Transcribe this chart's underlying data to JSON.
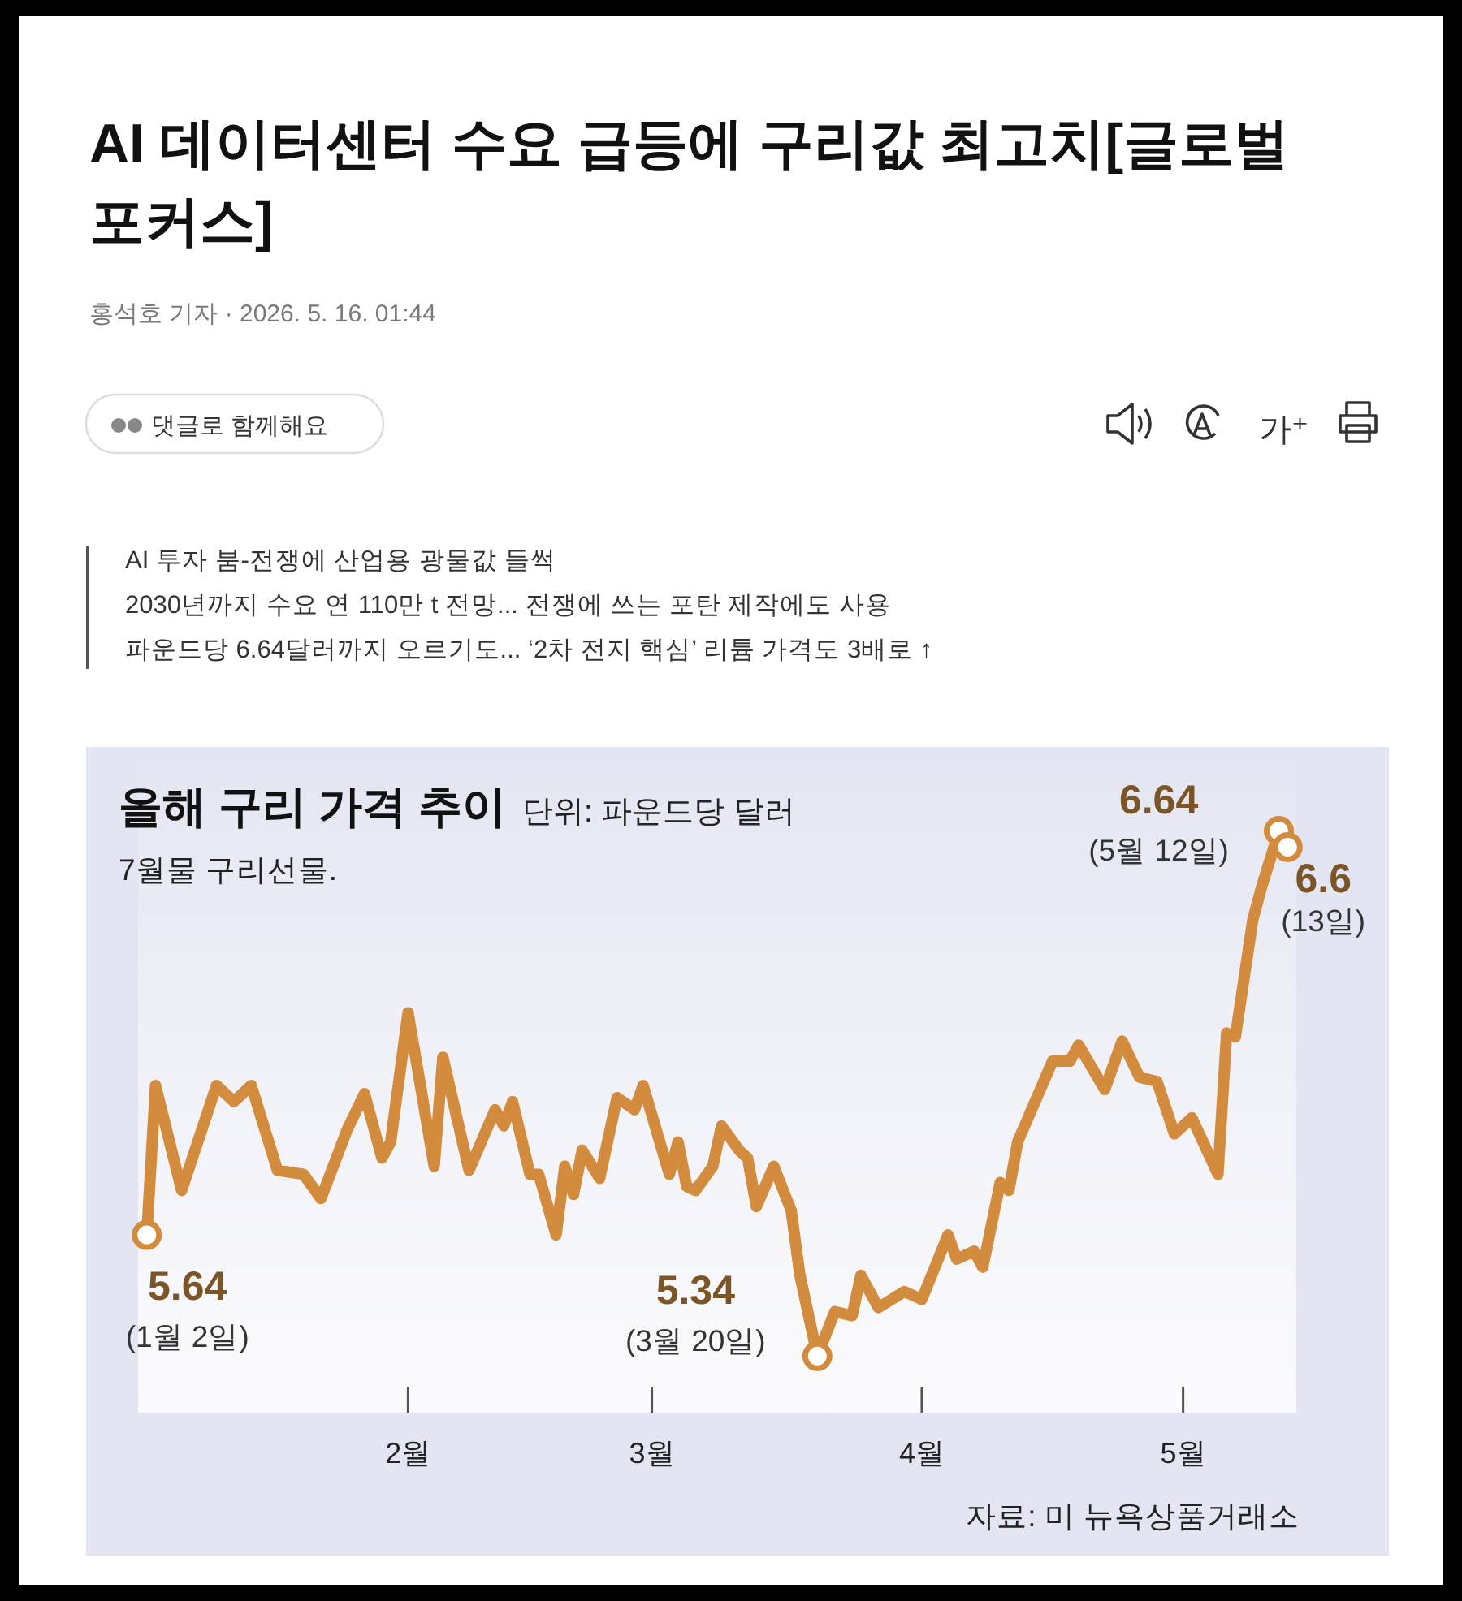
{
  "chart_data": [
    {
      "type": "other",
      "title": "AI 데이터센터 수요 급등에 구리값 최고치[글로벌 포커스]",
      "annotations": [
        "홍석호 기자 · 2026. 5. 16. 01:44",
        "댓글로 함께해요",
        "가⁺",
        "AI 투자 붐-전쟁에 산업용 광물값 들썩",
        "2030년까지 수요 연 110만 t 전망... 전쟁에 쓰는 포탄 제작에도 사용",
        "파운드당 6.64달러까지 오르기도... ‘2차 전지 핵심’ 리튬 가격도 3배로 ↑"
      ]
    },
    {
      "type": "line",
      "title": "올해 구리 가격 추이",
      "subtitle": "단위: 파운드당 달러",
      "x": [
        "--01-02",
        "--01-03",
        "--01-06",
        "--01-10",
        "--01-12",
        "--01-14",
        "--01-17",
        "--01-20",
        "--01-22",
        "--01-25",
        "--01-27",
        "--01-29",
        "--01-30",
        "--02-01",
        "--02-04",
        "--02-05",
        "--02-08",
        "--02-11",
        "--02-12",
        "--02-13",
        "--02-15",
        "--02-16",
        "--02-18",
        "--02-19",
        "--02-20",
        "--02-21",
        "--02-23",
        "--02-25",
        "--02-27",
        "--02-28",
        "--03-03",
        "--03-04",
        "--03-05",
        "--03-06",
        "--03-08",
        "--03-09",
        "--03-11",
        "--03-12",
        "--03-13",
        "--03-15",
        "--03-17",
        "--03-18",
        "--03-20",
        "--03-22",
        "--03-24",
        "--03-25",
        "--03-27",
        "--03-30",
        "--04-01",
        "--04-04",
        "--04-05",
        "--04-07",
        "--04-08",
        "--04-10",
        "--04-11",
        "--04-12",
        "--04-13",
        "--04-16",
        "--04-18",
        "--04-19",
        "--04-22",
        "--04-24",
        "--04-26",
        "--04-28",
        "--04-30",
        "--05-02",
        "--05-05",
        "--05-06",
        "--05-07",
        "--05-09",
        "--05-10",
        "--05-12",
        "--05-13"
      ],
      "series": [
        {
          "color": "#d38b3d",
          "values": [
            5.64,
            6.01,
            5.75,
            6.01,
            5.97,
            6.01,
            5.8,
            5.79,
            5.73,
            5.9,
            5.99,
            5.83,
            5.87,
            6.19,
            5.81,
            6.08,
            5.8,
            5.95,
            5.91,
            5.97,
            5.79,
            5.79,
            5.64,
            5.81,
            5.74,
            5.85,
            5.78,
            5.98,
            5.95,
            6.01,
            5.79,
            5.87,
            5.76,
            5.75,
            5.81,
            5.91,
            5.85,
            5.83,
            5.71,
            5.81,
            5.7,
            5.54,
            5.34,
            5.45,
            5.44,
            5.54,
            5.46,
            5.5,
            5.48,
            5.64,
            5.58,
            5.6,
            5.56,
            5.77,
            5.75,
            5.87,
            5.92,
            6.07,
            6.07,
            6.11,
            6.0,
            6.12,
            6.03,
            6.02,
            5.89,
            5.93,
            5.79,
            6.14,
            6.13,
            6.42,
            6.5,
            6.64,
            6.6
          ],
          "value_labels": [
            "5.64",
            null,
            null,
            null,
            null,
            null,
            null,
            null,
            null,
            null,
            null,
            null,
            null,
            null,
            null,
            null,
            null,
            null,
            null,
            null,
            null,
            null,
            null,
            null,
            null,
            null,
            null,
            null,
            null,
            null,
            null,
            null,
            null,
            null,
            null,
            null,
            null,
            null,
            null,
            null,
            null,
            null,
            "5.34",
            null,
            null,
            null,
            null,
            null,
            null,
            null,
            null,
            null,
            null,
            null,
            null,
            null,
            null,
            null,
            null,
            null,
            null,
            null,
            null,
            null,
            null,
            null,
            null,
            null,
            null,
            null,
            null,
            "6.64",
            "6.6"
          ]
        }
      ],
      "xlim": [
        "--01-01",
        "--05-14"
      ],
      "xticks": [
        {
          "value": "--02-01",
          "label": "2월"
        },
        {
          "value": "--03-01",
          "label": "3월"
        },
        {
          "value": "--04-01",
          "label": "4월"
        },
        {
          "value": "--05-01",
          "label": "5월"
        }
      ],
      "ylim": [
        5.2,
        6.84
      ],
      "tick_labels": "x",
      "line_style": "solid",
      "grid": false,
      "annotations": [
        "7월물 구리선물.",
        {
          "text": "(1월 2일)",
          "x": "--01-02",
          "y": 5.64
        },
        {
          "text": "(3월 20일)",
          "x": "--03-20",
          "y": 5.34
        },
        {
          "text": "(5월 12일)",
          "x": "--05-12",
          "y": 6.64
        },
        {
          "text": "(13일)",
          "x": "--05-13",
          "y": 6.6
        },
        "자료: 미 뉴욕상품거래소"
      ]
    }
  ]
}
